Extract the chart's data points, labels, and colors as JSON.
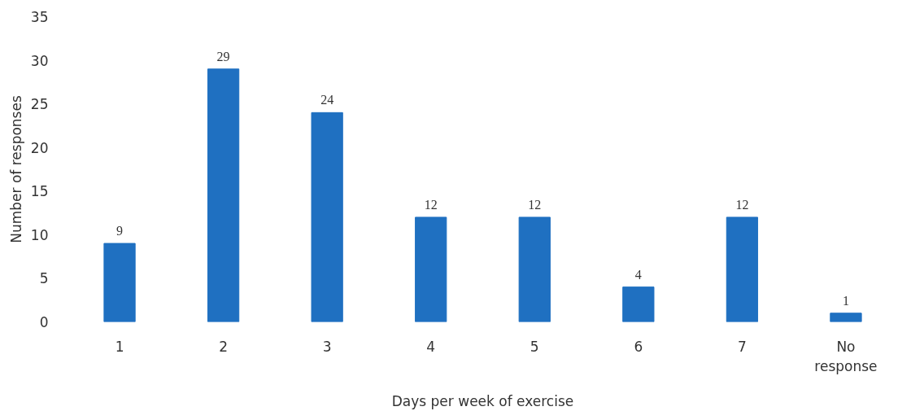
{
  "chart_data": {
    "type": "bar",
    "xlabel": "Days per week of exercise",
    "ylabel": "Number of responses",
    "categories": [
      "1",
      "2",
      "3",
      "4",
      "5",
      "6",
      "7",
      "No response"
    ],
    "values": [
      9,
      29,
      24,
      12,
      12,
      4,
      12,
      1
    ],
    "color": "#1f70c1",
    "ylim": [
      0,
      35
    ],
    "yticks": [
      0,
      5,
      10,
      15,
      20,
      25,
      30,
      35
    ],
    "grid": false,
    "data_labels": true
  }
}
